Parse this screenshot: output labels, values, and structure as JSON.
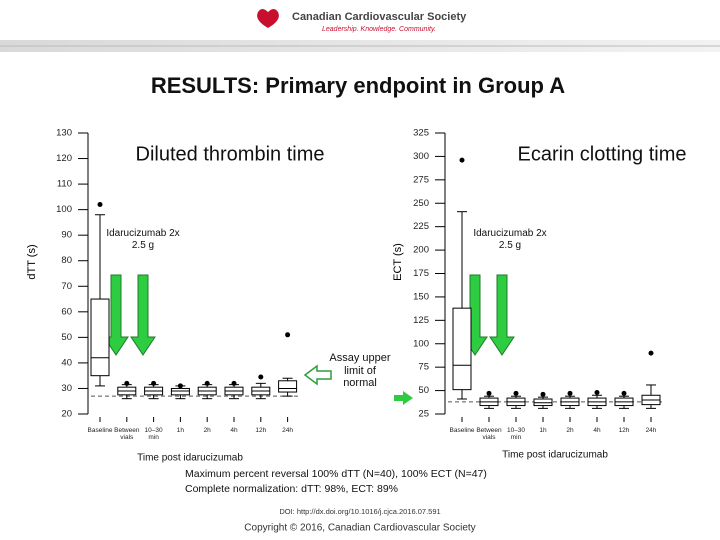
{
  "header": {
    "organization": "Canadian Cardiovascular Society",
    "tagline": "Leadership. Knowledge. Community."
  },
  "title": "RESULTS: Primary endpoint in Group A",
  "chart_data": [
    {
      "type": "box",
      "title": "Diluted thrombin time",
      "ylabel": "dTT (s)",
      "xlabel": "Time post idarucizumab",
      "annotation": "Idarucizumab 2x 2.5 g",
      "reference_line": 27,
      "reference_label": "Assay upper limit of normal",
      "color": "#000000",
      "box_fill": "#ffffff",
      "ylim": [
        20,
        130
      ],
      "yticks": [
        20,
        30,
        40,
        50,
        60,
        70,
        80,
        90,
        100,
        110,
        120,
        130
      ],
      "categories": [
        "Baseline",
        "Between vials",
        "10–30 min",
        "1h",
        "2h",
        "4h",
        "12h",
        "24h"
      ],
      "boxes": [
        {
          "low": 31,
          "q1": 35,
          "median": 42,
          "q3": 65,
          "high": 98,
          "outliers": [
            102
          ]
        },
        {
          "low": 26,
          "q1": 27.5,
          "median": 29,
          "q3": 30.5,
          "high": 31.5,
          "outliers": [
            32
          ]
        },
        {
          "low": 26,
          "q1": 27.5,
          "median": 29,
          "q3": 30.5,
          "high": 31.5,
          "outliers": [
            32
          ]
        },
        {
          "low": 26,
          "q1": 27.5,
          "median": 29,
          "q3": 30,
          "high": 31,
          "outliers": [
            31
          ]
        },
        {
          "low": 26,
          "q1": 27.5,
          "median": 29,
          "q3": 30.5,
          "high": 31.5,
          "outliers": [
            32
          ]
        },
        {
          "low": 26,
          "q1": 27.5,
          "median": 29,
          "q3": 30.5,
          "high": 31.5,
          "outliers": [
            32
          ]
        },
        {
          "low": 26,
          "q1": 27.5,
          "median": 29,
          "q3": 30.5,
          "high": 32,
          "outliers": [
            34.5
          ]
        },
        {
          "low": 27,
          "q1": 28.6,
          "median": 30,
          "q3": 33,
          "high": 34,
          "outliers": [
            51
          ]
        }
      ]
    },
    {
      "type": "box",
      "title": "Ecarin clotting time",
      "ylabel": "ECT (s)",
      "xlabel": "Time post idarucizumab",
      "annotation": "Idarucizumab 2x 2.5 g",
      "reference_line": 38,
      "color": "#000000",
      "box_fill": "#ffffff",
      "ylim": [
        25,
        325
      ],
      "yticks": [
        25,
        50,
        75,
        100,
        125,
        150,
        175,
        200,
        225,
        250,
        275,
        300,
        325
      ],
      "categories": [
        "Baseline",
        "Between vials",
        "10–30 min",
        "1h",
        "2h",
        "4h",
        "12h",
        "24h"
      ],
      "boxes": [
        {
          "low": 41,
          "q1": 51,
          "median": 77,
          "q3": 138,
          "high": 241,
          "outliers": [
            296
          ]
        },
        {
          "low": 31,
          "q1": 34,
          "median": 38,
          "q3": 42,
          "high": 44,
          "outliers": [
            47
          ]
        },
        {
          "low": 31,
          "q1": 34,
          "median": 38,
          "q3": 42,
          "high": 44,
          "outliers": [
            47
          ]
        },
        {
          "low": 31,
          "q1": 34,
          "median": 37,
          "q3": 41,
          "high": 43,
          "outliers": [
            46
          ]
        },
        {
          "low": 31,
          "q1": 34,
          "median": 38,
          "q3": 42,
          "high": 44,
          "outliers": [
            47
          ]
        },
        {
          "low": 31,
          "q1": 34,
          "median": 38,
          "q3": 42,
          "high": 45,
          "outliers": [
            48
          ]
        },
        {
          "low": 31,
          "q1": 34,
          "median": 38,
          "q3": 42,
          "high": 44,
          "outliers": [
            47
          ]
        },
        {
          "low": 31,
          "q1": 35,
          "median": 40,
          "q3": 45,
          "high": 56,
          "outliers": [
            90
          ]
        }
      ]
    }
  ],
  "notes": [
    "Maximum percent reversal 100% dTT (N=40), 100% ECT (N=47)",
    "Complete normalization: dTT: 98%, ECT: 89%"
  ],
  "doi": "DOI: http://dx.doi.org/10.1016/j.cjca.2016.07.591",
  "copyright": "Copyright © 2016, Canadian Cardiovascular Society"
}
